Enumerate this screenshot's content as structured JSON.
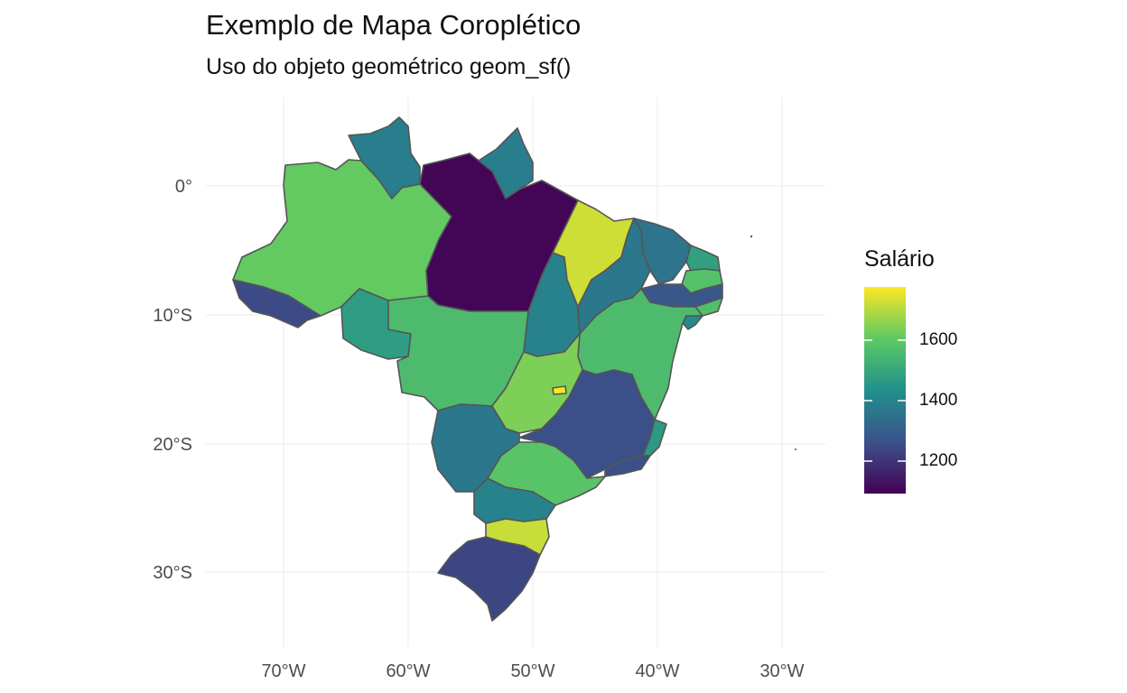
{
  "title": "Exemplo de Mapa Coroplético",
  "subtitle": "Uso do objeto geométrico geom_sf()",
  "map": {
    "x_ticks": [
      "70°W",
      "60°W",
      "50°W",
      "40°W",
      "30°W"
    ],
    "y_ticks": [
      "0°",
      "10°S",
      "20°S",
      "30°S"
    ],
    "legend": {
      "title": "Salário",
      "labels": [
        "1600",
        "1400",
        "1200"
      ],
      "palette": "viridis",
      "range": [
        1090,
        1790
      ],
      "colors": [
        "#440154",
        "#3b528b",
        "#21908c",
        "#5dc963",
        "#fde725"
      ]
    },
    "regions": [
      {
        "name": "AM",
        "value": 1620
      },
      {
        "name": "PA",
        "value": 1100
      },
      {
        "name": "RR",
        "value": 1390
      },
      {
        "name": "AP",
        "value": 1390
      },
      {
        "name": "AC",
        "value": 1250
      },
      {
        "name": "RO",
        "value": 1480
      },
      {
        "name": "MT",
        "value": 1570
      },
      {
        "name": "TO",
        "value": 1400
      },
      {
        "name": "MA",
        "value": 1740
      },
      {
        "name": "PI",
        "value": 1370
      },
      {
        "name": "CE",
        "value": 1360
      },
      {
        "name": "RN",
        "value": 1490
      },
      {
        "name": "PB",
        "value": 1590
      },
      {
        "name": "PE",
        "value": 1280
      },
      {
        "name": "AL",
        "value": 1580
      },
      {
        "name": "SE",
        "value": 1430
      },
      {
        "name": "BA",
        "value": 1570
      },
      {
        "name": "GO",
        "value": 1650
      },
      {
        "name": "DF",
        "value": 1790
      },
      {
        "name": "MG",
        "value": 1260
      },
      {
        "name": "ES",
        "value": 1470
      },
      {
        "name": "RJ",
        "value": 1260
      },
      {
        "name": "MS",
        "value": 1370
      },
      {
        "name": "SP",
        "value": 1600
      },
      {
        "name": "PR",
        "value": 1400
      },
      {
        "name": "SC",
        "value": 1730
      },
      {
        "name": "RS",
        "value": 1240
      }
    ]
  }
}
